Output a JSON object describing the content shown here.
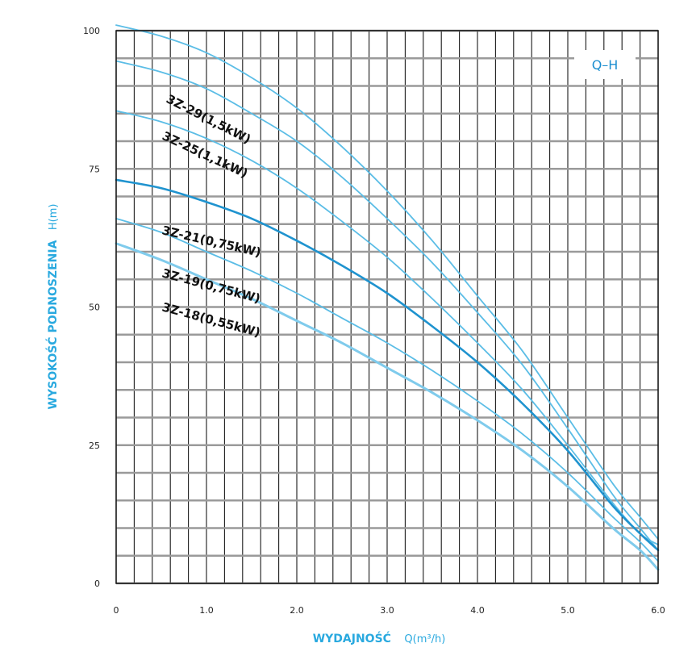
{
  "chart_data": {
    "type": "line",
    "title": "Q–H",
    "xlabel": "WYDAJNOŚĆ",
    "xunit": "Q(m³/h)",
    "ylabel": "WYSOKOŚĆ PODNOSZENIA",
    "yunit": "H(m)",
    "xlim": [
      0,
      6
    ],
    "ylim": [
      0,
      100
    ],
    "xticks": [
      "0",
      "1.0",
      "2.0",
      "3.0",
      "4.0",
      "5.0",
      "6.0"
    ],
    "yticks": [
      "0",
      "25",
      "50",
      "75",
      "100"
    ],
    "grid": true,
    "series": [
      {
        "name": "3Z-29(1,5kW)",
        "color": "#5bbde6",
        "x": [
          0,
          0.5,
          1,
          1.5,
          2,
          2.5,
          3,
          3.5,
          4,
          4.5,
          5,
          5.5,
          5.8,
          6
        ],
        "y": [
          101,
          99,
          96,
          91.5,
          86,
          79,
          71,
          62,
          52,
          42,
          30,
          18,
          12,
          8
        ]
      },
      {
        "name": "3Z-25(1,1kW)",
        "color": "#5bbde6",
        "x": [
          0,
          0.5,
          1,
          1.5,
          2,
          2.5,
          3,
          3.5,
          4,
          4.5,
          5,
          5.5,
          5.8,
          6
        ],
        "y": [
          94.5,
          92.5,
          89.5,
          85,
          80,
          73.5,
          66,
          58,
          49,
          39.5,
          28,
          16,
          10,
          6
        ]
      },
      {
        "name": "",
        "color": "#5bbde6",
        "x": [
          0,
          0.5,
          1,
          1.5,
          2,
          2.5,
          3,
          3.5,
          4,
          4.5,
          5,
          5.5,
          5.8,
          6
        ],
        "y": [
          85.5,
          83.5,
          80.5,
          76.5,
          71.5,
          65.5,
          59,
          51.5,
          43.5,
          35,
          25,
          14.5,
          9,
          7
        ]
      },
      {
        "name": "3Z-21(0,75kW)",
        "color": "#1f93cf",
        "x": [
          0,
          0.5,
          1,
          1.5,
          2,
          2.5,
          3,
          3.5,
          4,
          4.5,
          5,
          5.5,
          5.8,
          6
        ],
        "y": [
          73,
          71.5,
          69,
          66,
          62,
          57.5,
          52.5,
          46.5,
          40,
          32.5,
          24,
          14,
          9,
          6
        ]
      },
      {
        "name": "3Z-19(0,75kW)",
        "color": "#5bbde6",
        "x": [
          0,
          0.5,
          1,
          1.5,
          2,
          2.5,
          3,
          3.5,
          4,
          4.5,
          5,
          5.5,
          5.8,
          6
        ],
        "y": [
          66,
          63.5,
          60,
          56.5,
          52.5,
          48,
          43.5,
          38.5,
          33,
          27,
          20,
          12,
          7.5,
          4
        ]
      },
      {
        "name": "3Z-18(0,55kW)",
        "color": "#7fcbec",
        "x": [
          0,
          0.5,
          1,
          1.5,
          2,
          2.5,
          3,
          3.5,
          4,
          4.5,
          5,
          5.5,
          5.8,
          6
        ],
        "y": [
          61.5,
          58.5,
          55,
          51.5,
          47.5,
          43.5,
          39,
          34.5,
          29.5,
          24,
          17.5,
          10,
          6,
          2.5
        ]
      }
    ]
  }
}
